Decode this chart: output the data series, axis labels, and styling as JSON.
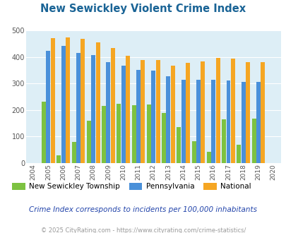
{
  "title": "New Sewickley Violent Crime Index",
  "years": [
    2004,
    2005,
    2006,
    2007,
    2008,
    2009,
    2010,
    2011,
    2012,
    2013,
    2014,
    2015,
    2016,
    2017,
    2018,
    2019,
    2020
  ],
  "new_sewickley": [
    null,
    230,
    30,
    80,
    160,
    215,
    222,
    217,
    220,
    190,
    135,
    83,
    42,
    165,
    68,
    168,
    null
  ],
  "pennsylvania": [
    null,
    422,
    440,
    416,
    408,
    381,
    366,
    352,
    348,
    328,
    313,
    313,
    313,
    310,
    305,
    305,
    null
  ],
  "national": [
    null,
    470,
    473,
    467,
    455,
    432,
    405,
    388,
    387,
    366,
    377,
    383,
    397,
    394,
    380,
    379,
    null
  ],
  "colors": {
    "new_sewickley": "#7dc241",
    "pennsylvania": "#4a90d9",
    "national": "#f5a623"
  },
  "background_color": "#ddeef6",
  "ylim": [
    0,
    500
  ],
  "yticks": [
    0,
    100,
    200,
    300,
    400,
    500
  ],
  "legend_labels": [
    "New Sewickley Township",
    "Pennsylvania",
    "National"
  ],
  "note": "Crime Index corresponds to incidents per 100,000 inhabitants",
  "copyright": "© 2025 CityRating.com - https://www.cityrating.com/crime-statistics/",
  "title_color": "#1a6496",
  "note_color": "#2244aa",
  "copyright_color": "#999999"
}
